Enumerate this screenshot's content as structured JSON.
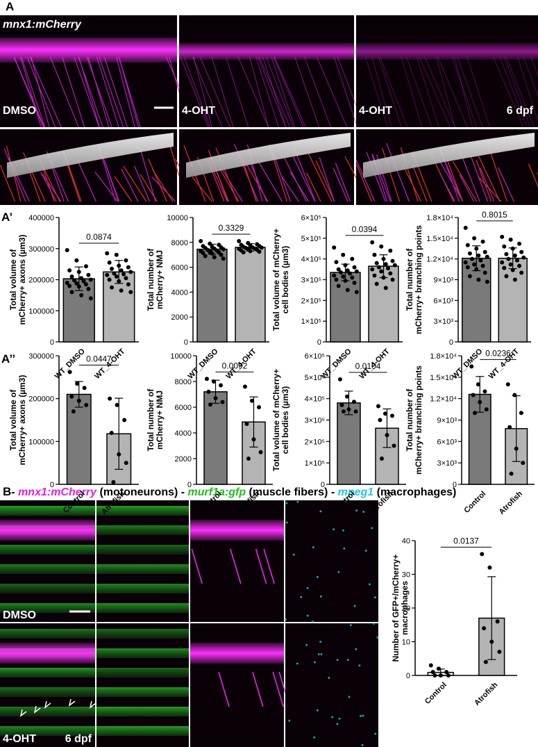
{
  "figure": {
    "panel_a": {
      "label": "A",
      "marker": "mnx1:mCherry",
      "conditions": [
        "DMSO",
        "4-OHT",
        "4-OHT"
      ],
      "stage": "6 dpf"
    },
    "panel_a1": {
      "label": "A’"
    },
    "panel_a2": {
      "label": "A’’"
    },
    "panel_b": {
      "label": "B",
      "legend": [
        {
          "text": "- ",
          "color": "#000000",
          "italic": false
        },
        {
          "text": "mnx1:mCherry",
          "color": "#e020e0",
          "italic": true
        },
        {
          "text": " (motoneurons) - ",
          "color": "#000000",
          "italic": false
        },
        {
          "text": "murf1a:gfp",
          "color": "#22bb22",
          "italic": true
        },
        {
          "text": " (muscle fibers) - ",
          "color": "#000000",
          "italic": false
        },
        {
          "text": "mpeg1",
          "color": "#22c8e0",
          "italic": true
        },
        {
          "text": " (macrophages)",
          "color": "#000000",
          "italic": false
        }
      ],
      "conditions": [
        "DMSO",
        "4-OHT"
      ],
      "stage": "6 dpf"
    }
  },
  "chart_data": [
    {
      "type": "bar",
      "ylabel": [
        "Total volume of",
        "mCherry+ axons (µm3)"
      ],
      "categories": [
        "WT_DMSO",
        "WT_4-OHT"
      ],
      "colors": [
        "#7a7a7a",
        "#b4b4b4"
      ],
      "values": [
        203000,
        225000
      ],
      "errors": [
        38000,
        37000
      ],
      "pvalue": "0.0874",
      "ylim": [
        0,
        400000
      ],
      "yticks": [
        0,
        100000,
        200000,
        300000,
        400000
      ],
      "points": [
        [
          295000,
          262000,
          243000,
          230000,
          225000,
          215000,
          210000,
          205000,
          200000,
          198000,
          195000,
          190000,
          188000,
          185000,
          180000,
          178000,
          170000,
          160000,
          150000,
          140000
        ],
        [
          285000,
          280000,
          262000,
          255000,
          245000,
          240000,
          235000,
          230000,
          225000,
          220000,
          218000,
          215000,
          210000,
          205000,
          200000,
          195000,
          185000,
          175000,
          165000,
          160000
        ]
      ]
    },
    {
      "type": "bar",
      "ylabel": [
        "Total number of",
        "mCherry+ NMJ"
      ],
      "categories": [
        "WT_DMSO",
        "WT_4-OHT"
      ],
      "colors": [
        "#7a7a7a",
        "#b4b4b4"
      ],
      "values": [
        7450,
        7600
      ],
      "errors": [
        400,
        300
      ],
      "pvalue": "0.3329",
      "ylim": [
        0,
        10000
      ],
      "yticks": [
        0,
        2000,
        4000,
        6000,
        8000,
        10000
      ],
      "points": [
        [
          8100,
          7900,
          7800,
          7700,
          7650,
          7600,
          7550,
          7500,
          7450,
          7400,
          7350,
          7300,
          7250,
          7200,
          7150,
          7100,
          7000,
          6900,
          6800,
          6700
        ],
        [
          8100,
          7950,
          7850,
          7800,
          7750,
          7700,
          7650,
          7600,
          7580,
          7550,
          7500,
          7480,
          7450,
          7400,
          7350,
          7300,
          7250,
          7200
        ]
      ]
    },
    {
      "type": "bar",
      "ylabel": [
        "Total volume of mCherry+",
        "cell bodies (µm3)"
      ],
      "categories": [
        "WT_DMSO",
        "WT_4-OHT"
      ],
      "colors": [
        "#7a7a7a",
        "#b4b4b4"
      ],
      "values": [
        335000,
        365000
      ],
      "errors": [
        40000,
        55000
      ],
      "pvalue": "0.0394",
      "ylim": [
        0,
        600000
      ],
      "yticks": [
        0,
        {
          "value": 100000,
          "label": "1×10⁵"
        },
        {
          "value": 200000,
          "label": "2×10⁵"
        },
        {
          "value": 300000,
          "label": "3×10⁵"
        },
        {
          "value": 400000,
          "label": "4×10⁵"
        },
        {
          "value": 500000,
          "label": "5×10⁵"
        },
        {
          "value": 600000,
          "label": "6×10⁵"
        }
      ],
      "points": [
        [
          455000,
          420000,
          400000,
          385000,
          370000,
          360000,
          350000,
          345000,
          340000,
          335000,
          330000,
          320000,
          315000,
          310000,
          300000,
          295000,
          285000,
          270000,
          250000,
          240000
        ],
        [
          480000,
          460000,
          440000,
          420000,
          400000,
          390000,
          380000,
          375000,
          370000,
          360000,
          355000,
          350000,
          340000,
          330000,
          320000,
          310000,
          300000,
          280000,
          260000
        ]
      ]
    },
    {
      "type": "bar",
      "ylabel": [
        "Total number of",
        "mCherry+ branching points"
      ],
      "categories": [
        "WT_DMSO",
        "WT_4-OHT"
      ],
      "colors": [
        "#7a7a7a",
        "#b4b4b4"
      ],
      "values": [
        12100,
        12100
      ],
      "errors": [
        1800,
        1500
      ],
      "pvalue": "0.8015",
      "ylim": [
        0,
        18000
      ],
      "yticks": [
        0,
        {
          "value": 3000,
          "label": "3×10³"
        },
        {
          "value": 6000,
          "label": "6×10³"
        },
        {
          "value": 9000,
          "label": "9×10³"
        },
        {
          "value": 12000,
          "label": "1.2×10⁴"
        },
        {
          "value": 15000,
          "label": "1.5×10⁴"
        },
        {
          "value": 18000,
          "label": "1.8×10⁴"
        }
      ],
      "points": [
        [
          16500,
          15000,
          14500,
          14000,
          13500,
          13000,
          12800,
          12500,
          12300,
          12000,
          11800,
          11500,
          11200,
          11000,
          10800,
          10500,
          10000,
          9500,
          9000,
          8700
        ],
        [
          15200,
          14800,
          14200,
          13800,
          13500,
          13000,
          12700,
          12500,
          12200,
          12000,
          11800,
          11500,
          11200,
          11000,
          10700,
          10400,
          10000,
          9500,
          9000
        ]
      ]
    },
    {
      "type": "bar",
      "ylabel": [
        "Total volume of",
        "mCherry+ axons (µm3)"
      ],
      "categories": [
        "Control",
        "Atrofish"
      ],
      "colors": [
        "#7a7a7a",
        "#b4b4b4"
      ],
      "values": [
        210000,
        118000
      ],
      "errors": [
        30000,
        83000
      ],
      "pvalue": "0.0447",
      "ylim": [
        0,
        300000
      ],
      "yticks": [
        0,
        100000,
        200000,
        300000
      ],
      "points": [
        [
          262000,
          235000,
          225000,
          205000,
          195000,
          185000,
          170000
        ],
        [
          200000,
          185000,
          150000,
          120000,
          70000,
          50000,
          5000
        ]
      ]
    },
    {
      "type": "bar",
      "ylabel": [
        "Total number of",
        "mCherry+ NMJ"
      ],
      "categories": [
        "Control",
        "Atrofish"
      ],
      "colors": [
        "#7a7a7a",
        "#b4b4b4"
      ],
      "values": [
        7200,
        4850
      ],
      "errors": [
        900,
        1950
      ],
      "pvalue": "0.0092",
      "ylim": [
        0,
        10000
      ],
      "yticks": [
        0,
        2000,
        4000,
        6000,
        8000,
        10000
      ],
      "points": [
        [
          8200,
          8000,
          7700,
          7200,
          6700,
          6400,
          6200
        ],
        [
          7600,
          6500,
          6000,
          4700,
          3500,
          2500,
          2000
        ]
      ]
    },
    {
      "type": "bar",
      "ylabel": [
        "Total volume of mCherry+",
        "cell bodies (µm3)"
      ],
      "categories": [
        "Control",
        "Atrofish"
      ],
      "colors": [
        "#7a7a7a",
        "#b4b4b4"
      ],
      "values": [
        380000,
        262000
      ],
      "errors": [
        55000,
        90000
      ],
      "pvalue": "0.0104",
      "ylim": [
        0,
        600000
      ],
      "yticks": [
        0,
        {
          "value": 100000,
          "label": "1×10⁵"
        },
        {
          "value": 200000,
          "label": "2×10⁵"
        },
        {
          "value": 300000,
          "label": "3×10⁵"
        },
        {
          "value": 400000,
          "label": "4×10⁵"
        },
        {
          "value": 500000,
          "label": "5×10⁵"
        },
        {
          "value": 600000,
          "label": "6×10⁵"
        }
      ],
      "points": [
        [
          490000,
          410000,
          385000,
          370000,
          350000,
          340000,
          340000
        ],
        [
          365000,
          330000,
          320000,
          300000,
          230000,
          180000,
          120000
        ]
      ]
    },
    {
      "type": "bar",
      "ylabel": [
        "Total number of",
        "mCherry+ branching points"
      ],
      "categories": [
        "Control",
        "Atrofish"
      ],
      "colors": [
        "#7a7a7a",
        "#b4b4b4"
      ],
      "values": [
        12600,
        7800
      ],
      "errors": [
        2500,
        4600
      ],
      "pvalue": "0.0236",
      "ylim": [
        0,
        18000
      ],
      "yticks": [
        0,
        {
          "value": 3000,
          "label": "3×10³"
        },
        {
          "value": 6000,
          "label": "6×10³"
        },
        {
          "value": 9000,
          "label": "9×10³"
        },
        {
          "value": 12000,
          "label": "1.2×10⁴"
        },
        {
          "value": 15000,
          "label": "1.5×10⁴"
        },
        {
          "value": 18000,
          "label": "1.8×10⁴"
        }
      ],
      "points": [
        [
          16500,
          14000,
          13000,
          12500,
          11500,
          10500,
          10000
        ],
        [
          14000,
          12500,
          10000,
          8000,
          5000,
          3000,
          1500
        ]
      ]
    },
    {
      "type": "bar",
      "ylabel": [
        "Number of GFP+/mCherry+",
        "macrophages"
      ],
      "categories": [
        "Control",
        "Atrofish"
      ],
      "colors": [
        "#f2f2f2",
        "#b4b4b4"
      ],
      "values": [
        0.9,
        17
      ],
      "errors": [
        1,
        12.3
      ],
      "pvalue": "0.0137",
      "ylim": [
        0,
        40
      ],
      "yticks": [
        0,
        10,
        20,
        30,
        40
      ],
      "points": [
        [
          3,
          2,
          1,
          1,
          0,
          0,
          0
        ],
        [
          36,
          32,
          16,
          14,
          10,
          7,
          4
        ]
      ]
    }
  ]
}
